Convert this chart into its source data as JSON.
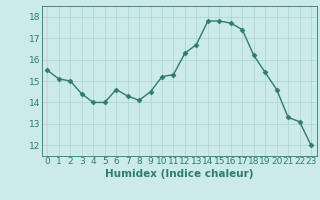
{
  "x": [
    0,
    1,
    2,
    3,
    4,
    5,
    6,
    7,
    8,
    9,
    10,
    11,
    12,
    13,
    14,
    15,
    16,
    17,
    18,
    19,
    20,
    21,
    22,
    23
  ],
  "y": [
    15.5,
    15.1,
    15.0,
    14.4,
    14.0,
    14.0,
    14.6,
    14.3,
    14.1,
    14.5,
    15.2,
    15.3,
    16.3,
    16.7,
    17.8,
    17.8,
    17.7,
    17.4,
    16.2,
    15.4,
    14.6,
    13.3,
    13.1,
    12.0
  ],
  "line_color": "#2e7d6e",
  "marker": "D",
  "marker_size": 2.5,
  "bg_color": "#cceae7",
  "grid_color": "#aad4d0",
  "axis_color": "#2e7d6e",
  "xlabel": "Humidex (Indice chaleur)",
  "ylim": [
    11.5,
    18.5
  ],
  "xlim": [
    -0.5,
    23.5
  ],
  "yticks": [
    12,
    13,
    14,
    15,
    16,
    17,
    18
  ],
  "xticks": [
    0,
    1,
    2,
    3,
    4,
    5,
    6,
    7,
    8,
    9,
    10,
    11,
    12,
    13,
    14,
    15,
    16,
    17,
    18,
    19,
    20,
    21,
    22,
    23
  ],
  "xlabel_fontsize": 7.5,
  "tick_fontsize": 6.5,
  "line_width": 1.0
}
